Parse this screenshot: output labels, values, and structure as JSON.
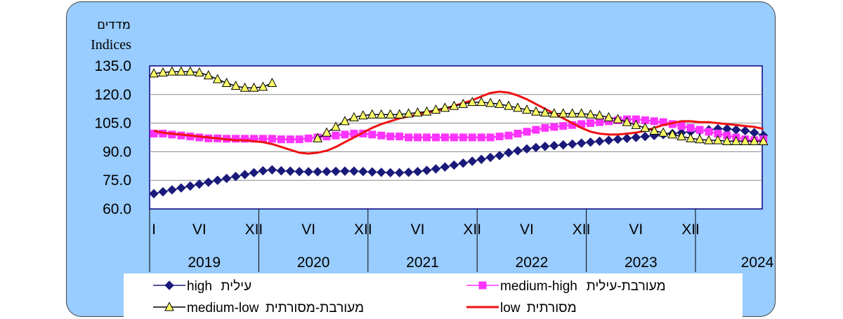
{
  "chart_data": {
    "type": "line",
    "ylabel_he": "מדדים",
    "ylabel_en": "Indices",
    "ylim": [
      60,
      135
    ],
    "yticks": [
      "135.0",
      "120.0",
      "105.0",
      "90.0",
      "75.0",
      "60.0"
    ],
    "x_month_labels": [
      "I",
      "VI",
      "XII",
      "VI",
      "XII",
      "VI",
      "XII",
      "VI",
      "XII",
      "VI",
      "XII"
    ],
    "x_year_labels": [
      "2019",
      "2020",
      "2021",
      "2022",
      "2023",
      "2024"
    ],
    "x_start": "2019-01",
    "grid": true,
    "series": [
      {
        "name": "high עילית",
        "color": "#1a1a7a",
        "marker": "diamond",
        "values": [
          68,
          69,
          70,
          71,
          72,
          73,
          74,
          75,
          76,
          77,
          78,
          79,
          80,
          80.5,
          80,
          79.8,
          79.6,
          79.5,
          79.5,
          79.6,
          79.7,
          79.8,
          79.8,
          79.6,
          79.4,
          79.2,
          79,
          79,
          79.2,
          79.6,
          80.2,
          81,
          82,
          83,
          84,
          85,
          86,
          87,
          88,
          89.5,
          90.5,
          91.5,
          92.2,
          92.8,
          93.2,
          93.6,
          94,
          94.5,
          95,
          95.5,
          96,
          96.5,
          97,
          97.5,
          98,
          98.5,
          99,
          99.5,
          100,
          100.5,
          101,
          101.5,
          102,
          102,
          101.5,
          101,
          100,
          98.5
        ]
      },
      {
        "name": "medium-high מעורבת-עילית",
        "color": "#ff33ff",
        "marker": "square",
        "values": [
          99.5,
          99.5,
          99,
          98.5,
          98,
          97.5,
          97,
          97,
          96.8,
          96.8,
          96.8,
          96.8,
          96.8,
          96.8,
          96.5,
          96.5,
          96.5,
          97,
          97.5,
          98,
          98.5,
          99,
          99.5,
          99.5,
          99,
          98.5,
          98,
          98,
          97.5,
          97.5,
          97.5,
          97.5,
          97.5,
          97.5,
          97.5,
          97.5,
          97.5,
          97.5,
          98,
          98.5,
          99.5,
          100.5,
          101.5,
          102.5,
          103,
          103.5,
          104,
          104.5,
          105,
          105.5,
          106,
          106.5,
          107,
          107,
          106.5,
          106,
          105.5,
          104.5,
          103.5,
          102.5,
          101.5,
          100.5,
          99.5,
          98.5,
          97.5,
          96.5,
          96,
          96.5
        ]
      },
      {
        "name": "medium-low מעורבת-מסורתית",
        "color": "#000000",
        "marker": "triangle",
        "gap_after_index": 17,
        "values": [
          131,
          131.5,
          132,
          132,
          132,
          131.5,
          130,
          128,
          126,
          124.5,
          123.5,
          123.5,
          124,
          126,
          null,
          null,
          null,
          null,
          97,
          100,
          103,
          106,
          108,
          109,
          109.5,
          109.5,
          109.5,
          109.5,
          110,
          110.5,
          111,
          112,
          113,
          114,
          115,
          116,
          116,
          115.5,
          115,
          114,
          113,
          112,
          111,
          110.5,
          110,
          110,
          110,
          110,
          109.5,
          109,
          108,
          107,
          105.5,
          104,
          102.5,
          101,
          100,
          99,
          98,
          97,
          96.5,
          96,
          96,
          95.5,
          95.5,
          95.5,
          95.5,
          95.5
        ]
      },
      {
        "name": "low מסורתית",
        "color": "#ee1111",
        "marker": "none",
        "values": [
          101,
          100,
          99.5,
          99,
          98.5,
          98,
          97.5,
          97,
          96.5,
          96,
          96,
          95.5,
          95,
          94,
          92.5,
          91,
          89.5,
          89,
          89.5,
          90.5,
          92.5,
          95,
          97.5,
          100,
          102.5,
          104.5,
          106,
          107.5,
          108.5,
          109.5,
          110.5,
          111.5,
          112.5,
          114,
          115.5,
          117,
          119,
          120.8,
          121.5,
          121,
          119.5,
          117.5,
          115,
          112.5,
          110,
          107.5,
          105,
          102.5,
          100.5,
          99.5,
          99,
          99,
          99.5,
          100,
          101,
          102.5,
          104,
          105,
          106,
          106,
          105.5,
          105.5,
          105,
          104.5,
          104,
          103.5,
          103,
          102
        ]
      }
    ],
    "legend": [
      {
        "series": 0,
        "latin": "high",
        "hebrew": "עילית"
      },
      {
        "series": 1,
        "latin": "medium-high",
        "hebrew": "מעורבת-עילית"
      },
      {
        "series": 2,
        "latin": "medium-low",
        "hebrew": "מעורבת-מסורתית"
      },
      {
        "series": 3,
        "latin": "low",
        "hebrew": "מסורתית"
      }
    ]
  }
}
